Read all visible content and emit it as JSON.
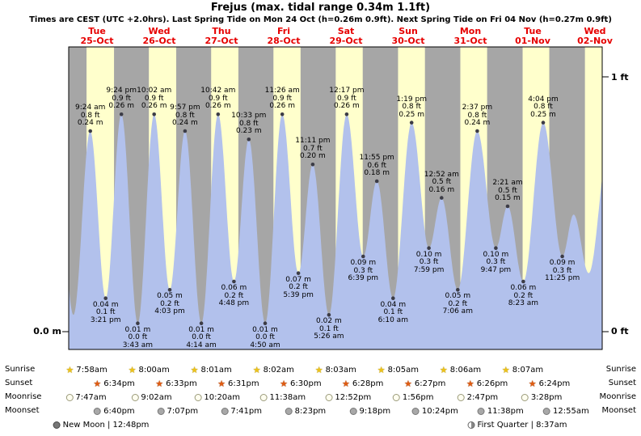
{
  "title": "Frejus (max. tidal range 0.34m 1.1ft)",
  "subtitle": "Times are CEST (UTC +2.0hrs). Last Spring Tide on Mon 24 Oct (h=0.26m 0.9ft). Next Spring Tide on Fri 04 Nov (h=0.27m 0.9ft)",
  "axis": {
    "left_m": "0.0 m",
    "right_ft_top": "1 ft",
    "right_ft_bottom": "0 ft"
  },
  "rows": {
    "sunrise": "Sunrise",
    "sunset": "Sunset",
    "moonrise": "Moonrise",
    "moonset": "Moonset"
  },
  "footer": {
    "new_moon": "New Moon | 12:48pm",
    "first_quarter": "First Quarter | 8:37am"
  },
  "colors": {
    "day_label": "#e60000",
    "night_band": "#a6a6a6",
    "daylight_band": "#ffffcc",
    "tide_fill": "#b2c1ec"
  },
  "chart_data": {
    "type": "area",
    "title": "Frejus tide height over time",
    "y_axis": {
      "left_unit": "m",
      "right_unit": "ft",
      "right_ticks": [
        "1 ft",
        "0 ft"
      ],
      "ylim_ft": [
        0,
        1
      ],
      "m_per_ft": 0.3048
    },
    "days": [
      {
        "name": "Tue",
        "date": "25-Oct",
        "sunrise": "7:58am",
        "sunset": "6:34pm",
        "moonrise": "7:47am",
        "moonset": "6:40pm"
      },
      {
        "name": "Wed",
        "date": "26-Oct",
        "sunrise": "8:00am",
        "sunset": "6:33pm",
        "moonrise": "9:02am",
        "moonset": "7:07pm"
      },
      {
        "name": "Thu",
        "date": "27-Oct",
        "sunrise": "8:01am",
        "sunset": "6:31pm",
        "moonrise": "10:20am",
        "moonset": "7:41pm"
      },
      {
        "name": "Fri",
        "date": "28-Oct",
        "sunrise": "8:02am",
        "sunset": "6:30pm",
        "moonrise": "11:38am",
        "moonset": "8:23pm"
      },
      {
        "name": "Sat",
        "date": "29-Oct",
        "sunrise": "8:03am",
        "sunset": "6:28pm",
        "moonrise": "12:52pm",
        "moonset": "9:18pm"
      },
      {
        "name": "Sun",
        "date": "30-Oct",
        "sunrise": "8:05am",
        "sunset": "6:27pm",
        "moonrise": "1:56pm",
        "moonset": "10:24pm"
      },
      {
        "name": "Mon",
        "date": "31-Oct",
        "sunrise": "8:06am",
        "sunset": "6:26pm",
        "moonrise": "2:47pm",
        "moonset": "11:38pm"
      },
      {
        "name": "Tue",
        "date": "01-Nov",
        "sunrise": "8:07am",
        "sunset": "6:24pm",
        "moonrise": "3:28pm",
        "moonset": "12:55am"
      },
      {
        "name": "Wed",
        "date": "02-Nov"
      }
    ],
    "tide_events": [
      {
        "day": 0,
        "time": "9:24 am",
        "height_m": 0.24,
        "label_ft": "0.8 ft",
        "label_m": "0.24 m",
        "kind": "high"
      },
      {
        "day": 0,
        "time": "3:21 pm",
        "height_m": 0.04,
        "label_ft": "0.1 ft",
        "label_m": "0.04 m",
        "kind": "low"
      },
      {
        "day": 0,
        "time": "9:24 pm",
        "height_m": 0.26,
        "label_ft": "0.9 ft",
        "label_m": "0.26 m",
        "kind": "high"
      },
      {
        "day": 1,
        "time": "3:43 am",
        "height_m": 0.01,
        "label_ft": "0.0 ft",
        "label_m": "0.01 m",
        "kind": "low"
      },
      {
        "day": 1,
        "time": "10:02 am",
        "height_m": 0.26,
        "label_ft": "0.9 ft",
        "label_m": "0.26 m",
        "kind": "high"
      },
      {
        "day": 1,
        "time": "4:03 pm",
        "height_m": 0.05,
        "label_ft": "0.2 ft",
        "label_m": "0.05 m",
        "kind": "low"
      },
      {
        "day": 1,
        "time": "9:57 pm",
        "height_m": 0.24,
        "label_ft": "0.8 ft",
        "label_m": "0.24 m",
        "kind": "high"
      },
      {
        "day": 2,
        "time": "4:14 am",
        "height_m": 0.01,
        "label_ft": "0.0 ft",
        "label_m": "0.01 m",
        "kind": "low"
      },
      {
        "day": 2,
        "time": "10:42 am",
        "height_m": 0.26,
        "label_ft": "0.9 ft",
        "label_m": "0.26 m",
        "kind": "high"
      },
      {
        "day": 2,
        "time": "4:48 pm",
        "height_m": 0.06,
        "label_ft": "0.2 ft",
        "label_m": "0.06 m",
        "kind": "low"
      },
      {
        "day": 2,
        "time": "10:33 pm",
        "height_m": 0.23,
        "label_ft": "0.8 ft",
        "label_m": "0.23 m",
        "kind": "high"
      },
      {
        "day": 3,
        "time": "4:50 am",
        "height_m": 0.01,
        "label_ft": "0.0 ft",
        "label_m": "0.01 m",
        "kind": "low"
      },
      {
        "day": 3,
        "time": "11:26 am",
        "height_m": 0.26,
        "label_ft": "0.9 ft",
        "label_m": "0.26 m",
        "kind": "high"
      },
      {
        "day": 3,
        "time": "5:39 pm",
        "height_m": 0.07,
        "label_ft": "0.2 ft",
        "label_m": "0.07 m",
        "kind": "low"
      },
      {
        "day": 3,
        "time": "11:11 pm",
        "height_m": 0.2,
        "label_ft": "0.7 ft",
        "label_m": "0.20 m",
        "kind": "high"
      },
      {
        "day": 4,
        "time": "5:26 am",
        "height_m": 0.02,
        "label_ft": "0.1 ft",
        "label_m": "0.02 m",
        "kind": "low"
      },
      {
        "day": 4,
        "time": "12:17 pm",
        "height_m": 0.26,
        "label_ft": "0.9 ft",
        "label_m": "0.26 m",
        "kind": "high"
      },
      {
        "day": 4,
        "time": "6:39 pm",
        "height_m": 0.09,
        "label_ft": "0.3 ft",
        "label_m": "0.09 m",
        "kind": "low"
      },
      {
        "day": 4,
        "time": "11:55 pm",
        "height_m": 0.18,
        "label_ft": "0.6 ft",
        "label_m": "0.18 m",
        "kind": "high"
      },
      {
        "day": 5,
        "time": "6:10 am",
        "height_m": 0.04,
        "label_ft": "0.1 ft",
        "label_m": "0.04 m",
        "kind": "low"
      },
      {
        "day": 5,
        "time": "1:19 pm",
        "height_m": 0.25,
        "label_ft": "0.8 ft",
        "label_m": "0.25 m",
        "kind": "high"
      },
      {
        "day": 5,
        "time": "7:59 pm",
        "height_m": 0.1,
        "label_ft": "0.3 ft",
        "label_m": "0.10 m",
        "kind": "low"
      },
      {
        "day": 6,
        "time": "12:52 am",
        "height_m": 0.16,
        "label_ft": "0.5 ft",
        "label_m": "0.16 m",
        "kind": "high"
      },
      {
        "day": 6,
        "time": "7:06 am",
        "height_m": 0.05,
        "label_ft": "0.2 ft",
        "label_m": "0.05 m",
        "kind": "low"
      },
      {
        "day": 6,
        "time": "2:37 pm",
        "height_m": 0.24,
        "label_ft": "0.8 ft",
        "label_m": "0.24 m",
        "kind": "high"
      },
      {
        "day": 6,
        "time": "9:47 pm",
        "height_m": 0.1,
        "label_ft": "0.3 ft",
        "label_m": "0.10 m",
        "kind": "low"
      },
      {
        "day": 7,
        "time": "2:21 am",
        "height_m": 0.15,
        "label_ft": "0.5 ft",
        "label_m": "0.15 m",
        "kind": "high"
      },
      {
        "day": 7,
        "time": "8:23 am",
        "height_m": 0.06,
        "label_ft": "0.2 ft",
        "label_m": "0.06 m",
        "kind": "low"
      },
      {
        "day": 7,
        "time": "4:04 pm",
        "height_m": 0.25,
        "label_ft": "0.8 ft",
        "label_m": "0.25 m",
        "kind": "high"
      },
      {
        "day": 7,
        "time": "11:25 pm",
        "height_m": 0.09,
        "label_ft": "0.3 ft",
        "label_m": "0.09 m",
        "kind": "low"
      }
    ],
    "curve_edge_estimates": [
      {
        "day": 0,
        "hour": -3.2,
        "height_m": 0.2
      },
      {
        "day": 0,
        "hour": 2.9,
        "height_m": 0.02
      },
      {
        "day": 8,
        "hour": 3.8,
        "height_m": 0.14
      },
      {
        "day": 8,
        "hour": 9.6,
        "height_m": 0.07
      },
      {
        "day": 8,
        "hour": 17.3,
        "height_m": 0.22
      }
    ]
  }
}
